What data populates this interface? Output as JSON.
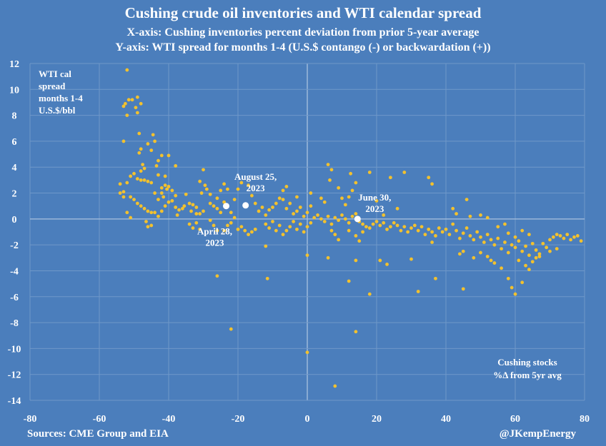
{
  "chart_data": {
    "type": "scatter",
    "title": "Cushing crude oil inventories and WTI calendar spread",
    "subtitle": [
      "X-axis: Cushing inventories percent deviation from prior 5-year average",
      "Y-axis: WTI spread for months 1-4 (U.S.$ contango (-) or backwardation (+))"
    ],
    "ylabel": [
      "WTI cal",
      "spread",
      "months 1-4",
      "U.S.$/bbl"
    ],
    "xlabel": [
      "Cushing stocks",
      "%Δ from 5yr avg"
    ],
    "xlim": [
      -80,
      80
    ],
    "ylim": [
      -14,
      12
    ],
    "xticks": [
      "-80",
      "-60",
      "-40",
      "-20",
      "0",
      "20",
      "40",
      "60",
      "80"
    ],
    "yticks": [
      "12",
      "10",
      "8",
      "6",
      "4",
      "2",
      "0",
      "-2",
      "-4",
      "-6",
      "-8",
      "-10",
      "-12",
      "-14"
    ],
    "grid": true,
    "colors": {
      "background": "#4b7ebc",
      "points": "#f2c12e",
      "highlight": "#ffffff",
      "grid": "#6f98c9"
    },
    "points": [
      [
        -52,
        11.5
      ],
      [
        -53,
        8.7
      ],
      [
        -52.5,
        8.9
      ],
      [
        -52,
        8.0
      ],
      [
        -51.5,
        9.2
      ],
      [
        -50.5,
        9.2
      ],
      [
        -49,
        9.4
      ],
      [
        -48,
        8.9
      ],
      [
        -49.5,
        8.6
      ],
      [
        -49,
        8.2
      ],
      [
        -53,
        6.0
      ],
      [
        -48.5,
        6.6
      ],
      [
        -44.5,
        6.5
      ],
      [
        -44,
        6.0
      ],
      [
        -46,
        5.8
      ],
      [
        -48,
        5.4
      ],
      [
        -48.5,
        5.1
      ],
      [
        -45,
        5.3
      ],
      [
        -42,
        4.9
      ],
      [
        -40,
        4.9
      ],
      [
        -43,
        4.5
      ],
      [
        -43.5,
        4.1
      ],
      [
        -38,
        4.1
      ],
      [
        -47.5,
        4.2
      ],
      [
        -47,
        3.9
      ],
      [
        -48,
        3.7
      ],
      [
        -50,
        3.5
      ],
      [
        -51,
        3.3
      ],
      [
        -49,
        3.1
      ],
      [
        -48,
        3.0
      ],
      [
        -47,
        3.0
      ],
      [
        -46,
        2.9
      ],
      [
        -45,
        2.8
      ],
      [
        -52,
        2.8
      ],
      [
        -54,
        2.7
      ],
      [
        -54,
        2.0
      ],
      [
        -53,
        2.1
      ],
      [
        -53,
        1.7
      ],
      [
        -51,
        1.7
      ],
      [
        -50,
        1.5
      ],
      [
        -49,
        1.2
      ],
      [
        -48,
        1.0
      ],
      [
        -47,
        0.8
      ],
      [
        -46,
        0.6
      ],
      [
        -45,
        0.5
      ],
      [
        -44,
        0.5
      ],
      [
        -43,
        0.2
      ],
      [
        -52,
        0.5
      ],
      [
        -51,
        0.1
      ],
      [
        -46.5,
        -0.2
      ],
      [
        -45,
        -0.5
      ],
      [
        -46,
        -0.6
      ],
      [
        -42,
        0.6
      ],
      [
        -41,
        1.0
      ],
      [
        -40,
        1.3
      ],
      [
        -41.5,
        1.7
      ],
      [
        -42,
        2.0
      ],
      [
        -40.5,
        2.3
      ],
      [
        -41,
        2.6
      ],
      [
        -42,
        2.4
      ],
      [
        -43,
        1.5
      ],
      [
        -44,
        2.0
      ],
      [
        -43,
        3.4
      ],
      [
        -41,
        3.3
      ],
      [
        -40,
        2.5
      ],
      [
        -39,
        2.2
      ],
      [
        -38,
        1.8
      ],
      [
        -39,
        1.4
      ],
      [
        -38,
        0.9
      ],
      [
        -37,
        0.7
      ],
      [
        -36,
        0.8
      ],
      [
        -37.5,
        0.3
      ],
      [
        -35,
        1.9
      ],
      [
        -35.5,
        1.0
      ],
      [
        -34,
        1.2
      ],
      [
        -33,
        1.1
      ],
      [
        -33.5,
        0.6
      ],
      [
        -32,
        0.4
      ],
      [
        -32,
        0.9
      ],
      [
        -31,
        0.4
      ],
      [
        -30,
        0.6
      ],
      [
        -34,
        -0.4
      ],
      [
        -33,
        -0.7
      ],
      [
        -32,
        -0.3
      ],
      [
        -31,
        -0.8
      ],
      [
        -30.5,
        2.0
      ],
      [
        -31,
        2.9
      ],
      [
        -30,
        3.8
      ],
      [
        -29.5,
        2.6
      ],
      [
        -29,
        2.3
      ],
      [
        -28,
        1.9
      ],
      [
        -28,
        1.2
      ],
      [
        -27,
        1.0
      ],
      [
        -26,
        1.6
      ],
      [
        -26,
        0.8
      ],
      [
        -25,
        0.5
      ],
      [
        -24,
        1.3
      ],
      [
        -25,
        2.2
      ],
      [
        -24,
        2.7
      ],
      [
        -23,
        2.3
      ],
      [
        -22,
        0.5
      ],
      [
        -21,
        1.5
      ],
      [
        -20,
        2.3
      ],
      [
        -21,
        0.1
      ],
      [
        -22,
        -0.3
      ],
      [
        -23,
        -0.5
      ],
      [
        -24,
        -0.9
      ],
      [
        -26,
        -0.9
      ],
      [
        -27,
        -0.5
      ],
      [
        -28,
        -0.1
      ],
      [
        -20,
        -0.8
      ],
      [
        -19,
        -0.6
      ],
      [
        -18,
        -0.9
      ],
      [
        -17,
        -1.2
      ],
      [
        -16,
        -1.0
      ],
      [
        -15,
        -0.8
      ],
      [
        -19,
        2.8
      ],
      [
        -17,
        2.6
      ],
      [
        -16,
        1.8
      ],
      [
        -15,
        1.2
      ],
      [
        -14,
        0.6
      ],
      [
        -13,
        0.9
      ],
      [
        -12,
        0.3
      ],
      [
        -11,
        0.7
      ],
      [
        -10,
        0.9
      ],
      [
        -9,
        1.2
      ],
      [
        -8,
        1.6
      ],
      [
        -7,
        1.5
      ],
      [
        -6,
        0.8
      ],
      [
        -5,
        1.2
      ],
      [
        -4,
        0.4
      ],
      [
        -3,
        0.6
      ],
      [
        -2,
        0.9
      ],
      [
        -1,
        0.2
      ],
      [
        0,
        0.5
      ],
      [
        1,
        1.0
      ],
      [
        1,
        2.0
      ],
      [
        -3,
        1.7
      ],
      [
        -6,
        2.5
      ],
      [
        -7,
        2.2
      ],
      [
        -12,
        -0.4
      ],
      [
        -11,
        -0.7
      ],
      [
        -10,
        -0.2
      ],
      [
        -9,
        -0.9
      ],
      [
        -8,
        -0.5
      ],
      [
        -7,
        -1.2
      ],
      [
        -6,
        -0.9
      ],
      [
        -5,
        -0.6
      ],
      [
        -4,
        -0.2
      ],
      [
        -3,
        -0.8
      ],
      [
        -2,
        -0.4
      ],
      [
        -1,
        -1.0
      ],
      [
        0,
        -0.6
      ],
      [
        1,
        -0.3
      ],
      [
        2,
        0.1
      ],
      [
        3,
        0.3
      ],
      [
        4,
        0.0
      ],
      [
        5,
        -0.2
      ],
      [
        6,
        0.2
      ],
      [
        7,
        -0.4
      ],
      [
        8,
        0.1
      ],
      [
        9,
        -0.1
      ],
      [
        10,
        0.3
      ],
      [
        11,
        0.0
      ],
      [
        12,
        -0.3
      ],
      [
        13,
        0.2
      ],
      [
        14,
        0.4
      ],
      [
        15,
        -0.2
      ],
      [
        16,
        -0.4
      ],
      [
        17,
        -0.6
      ],
      [
        -12,
        -2.1
      ],
      [
        0,
        -2.8
      ],
      [
        -26,
        -4.4
      ],
      [
        -11.5,
        -4.6
      ],
      [
        -22,
        -8.5
      ],
      [
        0,
        -10.3
      ],
      [
        8,
        -12.9
      ],
      [
        14,
        -8.7
      ],
      [
        18,
        -5.8
      ],
      [
        12,
        -4.8
      ],
      [
        14,
        -3.2
      ],
      [
        6,
        -3.0
      ],
      [
        21,
        -3.2
      ],
      [
        6,
        4.2
      ],
      [
        7,
        3.8
      ],
      [
        6.5,
        3.0
      ],
      [
        12.5,
        3.5
      ],
      [
        18,
        3.6
      ],
      [
        24,
        3.2
      ],
      [
        28,
        3.6
      ],
      [
        35,
        3.2
      ],
      [
        36,
        2.7
      ],
      [
        9,
        2.4
      ],
      [
        10,
        1.6
      ],
      [
        11,
        1.1
      ],
      [
        12,
        1.7
      ],
      [
        13,
        2.2
      ],
      [
        14,
        2.8
      ],
      [
        4,
        1.6
      ],
      [
        5,
        1.3
      ],
      [
        7,
        -0.9
      ],
      [
        8,
        -1.2
      ],
      [
        9,
        -1.6
      ],
      [
        12,
        -0.9
      ],
      [
        14,
        -1.3
      ],
      [
        15,
        -1.7
      ],
      [
        16,
        -1.0
      ],
      [
        18,
        -0.7
      ],
      [
        19,
        -0.4
      ],
      [
        20,
        -0.2
      ],
      [
        21,
        -0.5
      ],
      [
        22,
        -0.3
      ],
      [
        23,
        -0.8
      ],
      [
        24,
        -0.6
      ],
      [
        25,
        -0.3
      ],
      [
        26,
        -0.5
      ],
      [
        27,
        -0.9
      ],
      [
        28,
        -0.6
      ],
      [
        29,
        -1.0
      ],
      [
        30,
        -0.7
      ],
      [
        31,
        -0.5
      ],
      [
        32,
        -0.9
      ],
      [
        33,
        -0.6
      ],
      [
        34,
        -1.2
      ],
      [
        35,
        -0.8
      ],
      [
        36,
        -1.0
      ],
      [
        37,
        -1.3
      ],
      [
        38,
        -0.7
      ],
      [
        39,
        -1.0
      ],
      [
        40,
        -0.8
      ],
      [
        22,
        0.3
      ],
      [
        26,
        0.8
      ],
      [
        20,
        1.4
      ],
      [
        23,
        -3.5
      ],
      [
        30,
        -3.1
      ],
      [
        32,
        -5.6
      ],
      [
        37,
        -4.6
      ],
      [
        36,
        -1.8
      ],
      [
        41,
        -1.2
      ],
      [
        42,
        -0.4
      ],
      [
        43,
        -0.9
      ],
      [
        44,
        -1.5
      ],
      [
        45,
        -1.1
      ],
      [
        46,
        -0.7
      ],
      [
        47,
        -1.3
      ],
      [
        48,
        -1.6
      ],
      [
        49,
        -1.0
      ],
      [
        50,
        -1.4
      ],
      [
        51,
        -1.8
      ],
      [
        52,
        -1.2
      ],
      [
        53,
        -1.6
      ],
      [
        54,
        -2.0
      ],
      [
        55,
        -1.5
      ],
      [
        56,
        -2.3
      ],
      [
        57,
        -1.8
      ],
      [
        58,
        -2.6
      ],
      [
        59,
        -2.0
      ],
      [
        60,
        -2.2
      ],
      [
        61,
        -1.7
      ],
      [
        62,
        -2.5
      ],
      [
        63,
        -2.1
      ],
      [
        64,
        -2.8
      ],
      [
        65,
        -1.9
      ],
      [
        66,
        -2.4
      ],
      [
        67,
        -2.7
      ],
      [
        68,
        -1.9
      ],
      [
        69,
        -2.2
      ],
      [
        70,
        -1.6
      ],
      [
        71,
        -1.4
      ],
      [
        72,
        -1.2
      ],
      [
        73,
        -1.3
      ],
      [
        74,
        -1.5
      ],
      [
        75,
        -1.2
      ],
      [
        76,
        -1.6
      ],
      [
        77,
        -1.4
      ],
      [
        78,
        -1.3
      ],
      [
        79,
        -1.7
      ],
      [
        44,
        -2.7
      ],
      [
        45,
        -2.5
      ],
      [
        46,
        1.5
      ],
      [
        42,
        0.8
      ],
      [
        43,
        0.4
      ],
      [
        47,
        0.2
      ],
      [
        52,
        0.1
      ],
      [
        50,
        0.3
      ],
      [
        55,
        -0.6
      ],
      [
        57,
        -0.4
      ],
      [
        54,
        -3.4
      ],
      [
        56,
        -3.8
      ],
      [
        58,
        -4.6
      ],
      [
        59,
        -5.3
      ],
      [
        60,
        -5.8
      ],
      [
        62,
        -4.9
      ],
      [
        61,
        -3.2
      ],
      [
        63,
        -3.6
      ],
      [
        64,
        -3.9
      ],
      [
        65,
        -3.3
      ],
      [
        66,
        -3.0
      ],
      [
        67,
        -2.9
      ],
      [
        45,
        -5.4
      ],
      [
        48,
        -3.0
      ],
      [
        50,
        -2.6
      ],
      [
        52,
        -2.9
      ],
      [
        53,
        -3.2
      ],
      [
        70,
        -2.5
      ],
      [
        72,
        -2.3
      ],
      [
        58,
        -1.1
      ],
      [
        60,
        -1.4
      ],
      [
        62,
        -0.9
      ],
      [
        64,
        -1.2
      ]
    ],
    "highlighted_points": [
      {
        "x": -23.4,
        "y": 1.0,
        "label": [
          "April 28,",
          "2023"
        ]
      },
      {
        "x": -17.8,
        "y": 1.05,
        "label": [
          "August 25,",
          "2023"
        ]
      },
      {
        "x": 14.5,
        "y": 0.0,
        "label": [
          "June 30,",
          "2023"
        ]
      }
    ]
  },
  "footer": {
    "source": "Sources: CME Group and EIA",
    "credit": "@JKempEnergy"
  }
}
